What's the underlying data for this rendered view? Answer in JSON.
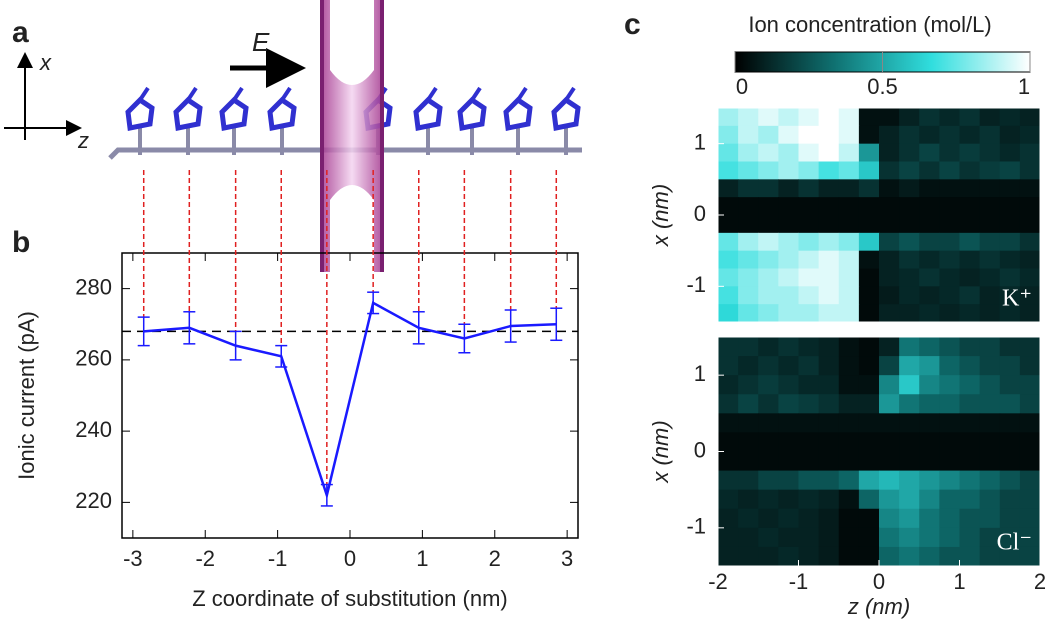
{
  "panels": [
    "a",
    "b",
    "c"
  ],
  "schematic": {
    "axis_x": "x",
    "axis_z": "z",
    "field": "E"
  },
  "colorbar": {
    "title": "Ion concentration (mol/L)",
    "lim": [
      0,
      1
    ],
    "ticks": [
      0,
      0.5,
      1
    ]
  },
  "chart_data": [
    {
      "type": "errorline",
      "xlabel": "Z coordinate of substitution (nm)",
      "ylabel": "Ionic current (pA)",
      "x": [
        -2.85,
        -2.22,
        -1.58,
        -0.95,
        -0.32,
        0.32,
        0.95,
        1.58,
        2.22,
        2.85
      ],
      "values": [
        268,
        269,
        264,
        261,
        222,
        276,
        269,
        266,
        269.5,
        270
      ],
      "errors": [
        4,
        4.5,
        4,
        3,
        3,
        3,
        4.5,
        4,
        4.5,
        4.5
      ],
      "color": "#1a1aff",
      "hline": 268,
      "xlim": [
        -3.15,
        3.15
      ],
      "ylim": [
        210,
        290
      ],
      "xticks": [
        -3,
        -2,
        -1,
        0,
        1,
        2,
        3
      ],
      "yticks": [
        220,
        240,
        260,
        280
      ]
    },
    {
      "type": "heatmap",
      "label": "K⁺",
      "ylabel": "x (nm)",
      "xlim": [
        -2,
        2
      ],
      "ylim": [
        -1.5,
        1.5
      ],
      "yticks": [
        -1,
        0,
        1
      ],
      "colormap": [
        "#000000",
        "#0f7070",
        "#30dede",
        "#ffffff"
      ],
      "values": [
        [
          0.85,
          0.9,
          0.95,
          0.9,
          0.95,
          1,
          0.95,
          0.05,
          0.05,
          0.1,
          0.15,
          0.12,
          0.15,
          0.1,
          0.12,
          0.1
        ],
        [
          0.8,
          0.9,
          0.85,
          0.95,
          1,
          1,
          0.95,
          0.05,
          0.1,
          0.15,
          0.12,
          0.15,
          0.12,
          0.15,
          0.1,
          0.12
        ],
        [
          0.75,
          0.85,
          0.9,
          0.85,
          0.95,
          1,
          0.9,
          0.45,
          0.1,
          0.15,
          0.2,
          0.15,
          0.18,
          0.15,
          0.12,
          0.15
        ],
        [
          0.7,
          0.75,
          0.8,
          0.85,
          0.8,
          0.7,
          0.75,
          0.6,
          0.15,
          0.2,
          0.15,
          0.2,
          0.15,
          0.18,
          0.2,
          0.15
        ],
        [
          0.1,
          0.15,
          0.15,
          0.1,
          0.15,
          0.1,
          0.1,
          0.15,
          0.05,
          0.08,
          0.05,
          0.05,
          0.05,
          0.05,
          0.05,
          0.05
        ],
        [
          0.03,
          0.03,
          0.03,
          0.03,
          0.03,
          0.03,
          0.03,
          0.03,
          0.03,
          0.03,
          0.03,
          0.03,
          0.03,
          0.03,
          0.03,
          0.03
        ],
        [
          0.03,
          0.03,
          0.03,
          0.03,
          0.03,
          0.03,
          0.03,
          0.03,
          0.03,
          0.03,
          0.03,
          0.03,
          0.03,
          0.03,
          0.03,
          0.03
        ],
        [
          0.75,
          0.85,
          0.9,
          0.85,
          0.8,
          0.85,
          0.8,
          0.6,
          0.2,
          0.25,
          0.2,
          0.2,
          0.25,
          0.2,
          0.2,
          0.15
        ],
        [
          0.7,
          0.75,
          0.8,
          0.85,
          0.9,
          0.95,
          0.9,
          0.05,
          0.1,
          0.15,
          0.12,
          0.15,
          0.12,
          0.15,
          0.12,
          0.1
        ],
        [
          0.75,
          0.8,
          0.85,
          0.9,
          0.95,
          0.95,
          0.9,
          0.03,
          0.1,
          0.12,
          0.15,
          0.12,
          0.1,
          0.12,
          0.15,
          0.12
        ],
        [
          0.7,
          0.8,
          0.85,
          0.85,
          0.9,
          0.95,
          0.9,
          0.03,
          0.08,
          0.12,
          0.1,
          0.12,
          0.15,
          0.1,
          0.12,
          0.1
        ],
        [
          0.65,
          0.75,
          0.8,
          0.85,
          0.85,
          0.9,
          0.9,
          0.03,
          0.1,
          0.1,
          0.12,
          0.1,
          0.12,
          0.1,
          0.12,
          0.1
        ]
      ]
    },
    {
      "type": "heatmap",
      "label": "Cl⁻",
      "ylabel": "x (nm)",
      "xlabel": "z (nm)",
      "xlim": [
        -2,
        2
      ],
      "ylim": [
        -1.5,
        1.5
      ],
      "xticks": [
        -2,
        -1,
        0,
        1,
        2
      ],
      "yticks": [
        -1,
        0,
        1
      ],
      "colormap": [
        "#000000",
        "#0f7070",
        "#30dede",
        "#ffffff"
      ],
      "values": [
        [
          0.15,
          0.15,
          0.12,
          0.15,
          0.12,
          0.1,
          0.05,
          0.03,
          0.1,
          0.35,
          0.3,
          0.25,
          0.2,
          0.2,
          0.15,
          0.15
        ],
        [
          0.15,
          0.12,
          0.15,
          0.12,
          0.15,
          0.1,
          0.05,
          0.03,
          0.2,
          0.5,
          0.45,
          0.3,
          0.25,
          0.2,
          0.2,
          0.15
        ],
        [
          0.12,
          0.15,
          0.18,
          0.15,
          0.12,
          0.12,
          0.05,
          0.05,
          0.4,
          0.6,
          0.4,
          0.35,
          0.3,
          0.25,
          0.2,
          0.2
        ],
        [
          0.15,
          0.2,
          0.15,
          0.2,
          0.18,
          0.15,
          0.1,
          0.1,
          0.45,
          0.35,
          0.3,
          0.3,
          0.25,
          0.25,
          0.25,
          0.2
        ],
        [
          0.05,
          0.05,
          0.05,
          0.05,
          0.05,
          0.05,
          0.05,
          0.05,
          0.05,
          0.05,
          0.05,
          0.05,
          0.05,
          0.05,
          0.05,
          0.05
        ],
        [
          0.03,
          0.03,
          0.03,
          0.03,
          0.03,
          0.03,
          0.03,
          0.03,
          0.03,
          0.03,
          0.03,
          0.03,
          0.03,
          0.03,
          0.03,
          0.03
        ],
        [
          0.03,
          0.03,
          0.03,
          0.03,
          0.03,
          0.03,
          0.03,
          0.03,
          0.03,
          0.03,
          0.03,
          0.03,
          0.03,
          0.03,
          0.03,
          0.03
        ],
        [
          0.15,
          0.15,
          0.2,
          0.2,
          0.25,
          0.25,
          0.3,
          0.5,
          0.55,
          0.5,
          0.45,
          0.4,
          0.35,
          0.3,
          0.25,
          0.2
        ],
        [
          0.12,
          0.1,
          0.12,
          0.1,
          0.12,
          0.1,
          0.05,
          0.3,
          0.45,
          0.5,
          0.4,
          0.3,
          0.3,
          0.25,
          0.2,
          0.2
        ],
        [
          0.1,
          0.12,
          0.1,
          0.12,
          0.1,
          0.08,
          0.03,
          0.03,
          0.4,
          0.45,
          0.35,
          0.3,
          0.25,
          0.25,
          0.2,
          0.2
        ],
        [
          0.1,
          0.1,
          0.12,
          0.1,
          0.1,
          0.08,
          0.03,
          0.03,
          0.35,
          0.4,
          0.35,
          0.3,
          0.25,
          0.2,
          0.2,
          0.2
        ],
        [
          0.1,
          0.1,
          0.1,
          0.12,
          0.1,
          0.08,
          0.03,
          0.03,
          0.3,
          0.35,
          0.3,
          0.25,
          0.25,
          0.2,
          0.2,
          0.2
        ]
      ]
    }
  ]
}
